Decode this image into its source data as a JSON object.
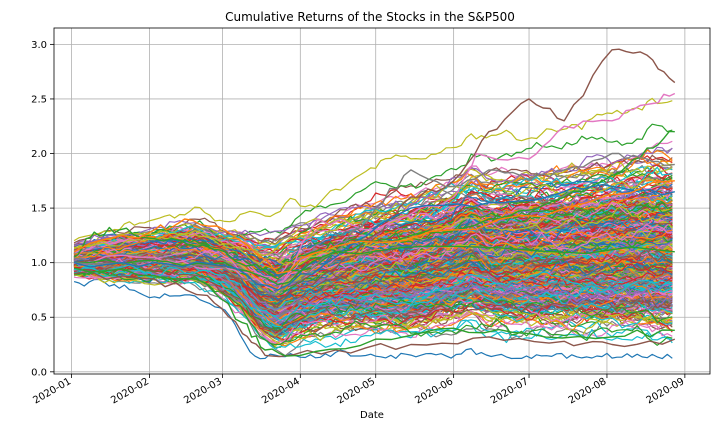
{
  "chart_data": {
    "type": "line",
    "title": "Cumulative Returns of the Stocks in the S&P500",
    "xlabel": "Date",
    "ylabel": "",
    "x_ticks": [
      "2020-01",
      "2020-02",
      "2020-03",
      "2020-04",
      "2020-05",
      "2020-06",
      "2020-07",
      "2020-08",
      "2020-09"
    ],
    "y_ticks": [
      "0.0",
      "0.5",
      "1.0",
      "1.5",
      "2.0",
      "2.5",
      "3.0"
    ],
    "xlim": [
      "2019-12-25",
      "2020-09-11"
    ],
    "ylim": [
      -0.02,
      3.15
    ],
    "grid": true,
    "legend": "none",
    "series_count_approx": 500,
    "palette": [
      "#1f77b4",
      "#ff7f0e",
      "#2ca02c",
      "#d62728",
      "#9467bd",
      "#8c564b",
      "#e377c2",
      "#7f7f7f",
      "#bcbd22",
      "#17becf"
    ],
    "highlighted_series": [
      {
        "color": "#8c564b",
        "x": [
          "2020-01-02",
          "2020-02-03",
          "2020-03-02",
          "2020-03-23",
          "2020-04-15",
          "2020-05-04",
          "2020-05-15",
          "2020-06-01",
          "2020-06-15",
          "2020-07-01",
          "2020-07-15",
          "2020-08-03",
          "2020-08-17",
          "2020-08-28"
        ],
        "values": [
          1.0,
          1.02,
          0.95,
          0.65,
          0.95,
          1.3,
          1.6,
          1.75,
          2.2,
          2.5,
          2.3,
          2.95,
          2.9,
          2.65
        ]
      },
      {
        "color": "#e377c2",
        "x": [
          "2020-01-02",
          "2020-02-03",
          "2020-03-02",
          "2020-03-23",
          "2020-04-08",
          "2020-05-01",
          "2020-06-01",
          "2020-06-10",
          "2020-07-01",
          "2020-07-15",
          "2020-08-03",
          "2020-08-17",
          "2020-08-28"
        ],
        "values": [
          1.0,
          1.05,
          0.95,
          0.75,
          1.4,
          1.3,
          1.6,
          2.0,
          1.95,
          2.25,
          2.3,
          2.45,
          2.55
        ]
      },
      {
        "color": "#2ca02c",
        "x": [
          "2020-01-02",
          "2020-02-03",
          "2020-03-02",
          "2020-03-23",
          "2020-04-15",
          "2020-05-15",
          "2020-06-15",
          "2020-07-15",
          "2020-08-03",
          "2020-08-17",
          "2020-08-28"
        ],
        "values": [
          1.0,
          1.02,
          1.0,
          0.8,
          1.1,
          1.25,
          1.4,
          1.6,
          1.8,
          2.05,
          2.2
        ]
      },
      {
        "color": "#7f7f7f",
        "x": [
          "2020-01-02",
          "2020-02-03",
          "2020-03-02",
          "2020-03-23",
          "2020-04-15",
          "2020-05-01",
          "2020-05-15",
          "2020-06-01",
          "2020-06-15",
          "2020-07-01",
          "2020-07-15",
          "2020-08-03",
          "2020-08-17",
          "2020-08-28"
        ],
        "values": [
          1.0,
          1.0,
          0.95,
          0.7,
          1.1,
          1.5,
          1.85,
          1.7,
          1.85,
          1.75,
          1.85,
          2.0,
          1.95,
          1.9
        ]
      },
      {
        "color": "#1f77b4",
        "x": [
          "2020-01-02",
          "2020-02-03",
          "2020-03-02",
          "2020-03-23",
          "2020-04-15",
          "2020-05-15",
          "2020-06-15",
          "2020-07-15",
          "2020-08-03",
          "2020-08-28"
        ],
        "values": [
          1.0,
          1.0,
          0.97,
          0.75,
          1.05,
          1.5,
          1.55,
          1.65,
          1.7,
          1.65
        ]
      },
      {
        "color": "#2ca02c",
        "x": [
          "2020-01-02",
          "2020-01-10",
          "2020-01-20",
          "2020-02-03",
          "2020-02-20",
          "2020-03-02",
          "2020-03-23",
          "2020-04-15",
          "2020-06-01",
          "2020-08-28"
        ],
        "values": [
          1.05,
          1.28,
          1.3,
          1.22,
          1.15,
          1.1,
          0.85,
          1.1,
          1.15,
          1.1
        ]
      },
      {
        "color": "#ff7f0e",
        "x": [
          "2020-01-02",
          "2020-02-03",
          "2020-02-15",
          "2020-03-02",
          "2020-03-23",
          "2020-04-15",
          "2020-06-01",
          "2020-07-15",
          "2020-08-28"
        ],
        "values": [
          1.1,
          1.3,
          1.4,
          1.3,
          0.9,
          1.15,
          1.3,
          1.5,
          1.75
        ]
      },
      {
        "color": "#8c564b",
        "x": [
          "2020-01-02",
          "2020-02-03",
          "2020-02-24",
          "2020-03-09",
          "2020-03-18",
          "2020-04-15",
          "2020-05-15",
          "2020-06-15",
          "2020-07-15",
          "2020-08-03",
          "2020-08-28"
        ],
        "values": [
          0.9,
          0.85,
          0.7,
          0.35,
          0.15,
          0.2,
          0.25,
          0.32,
          0.28,
          0.25,
          0.3
        ]
      },
      {
        "color": "#2ca02c",
        "x": [
          "2020-01-02",
          "2020-02-03",
          "2020-02-24",
          "2020-03-09",
          "2020-03-18",
          "2020-04-01",
          "2020-05-01",
          "2020-06-01",
          "2020-07-01",
          "2020-08-03",
          "2020-08-28"
        ],
        "values": [
          0.95,
          0.88,
          0.8,
          0.45,
          0.2,
          0.15,
          0.3,
          0.4,
          0.35,
          0.32,
          0.38
        ]
      }
    ],
    "distribution": {
      "note": "bulk of series; median path with spread (quantile envelope) per date",
      "x": [
        "2020-01-02",
        "2020-01-15",
        "2020-02-03",
        "2020-02-19",
        "2020-03-02",
        "2020-03-09",
        "2020-03-16",
        "2020-03-23",
        "2020-04-01",
        "2020-04-15",
        "2020-05-01",
        "2020-05-15",
        "2020-06-01",
        "2020-06-08",
        "2020-06-15",
        "2020-07-01",
        "2020-07-15",
        "2020-08-03",
        "2020-08-17",
        "2020-08-28"
      ],
      "median": [
        1.0,
        1.01,
        1.02,
        1.03,
        0.92,
        0.82,
        0.68,
        0.62,
        0.72,
        0.8,
        0.85,
        0.86,
        0.95,
        1.02,
        0.95,
        0.96,
        0.98,
        1.0,
        1.02,
        1.0
      ],
      "spread": [
        0.05,
        0.08,
        0.1,
        0.12,
        0.14,
        0.18,
        0.22,
        0.25,
        0.25,
        0.27,
        0.3,
        0.32,
        0.33,
        0.35,
        0.35,
        0.37,
        0.38,
        0.4,
        0.42,
        0.43
      ]
    }
  }
}
